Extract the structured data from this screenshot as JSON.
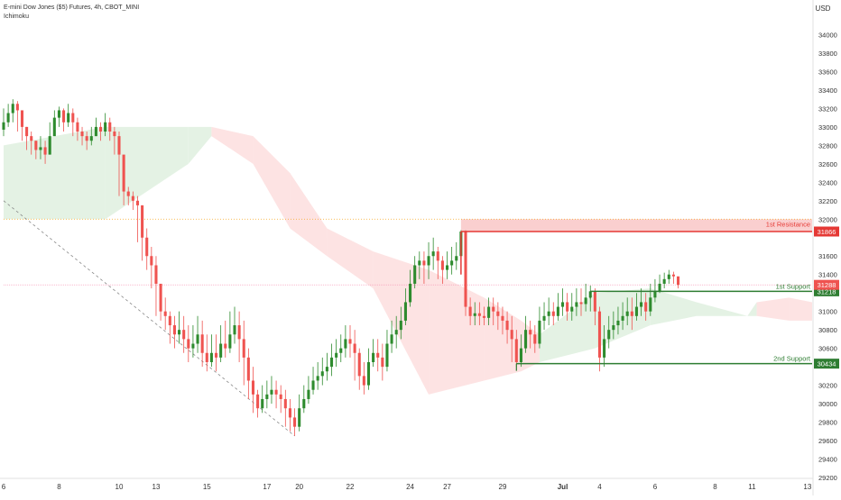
{
  "legend": {
    "symbol_line": "E-mini Dow Jones ($5) Futures, 4h, CBOT_MINI",
    "indicator": "Ichimoku"
  },
  "colors": {
    "up": "#2e8b2e",
    "down": "#ef5350",
    "cloud_bull": "#e4f2e4",
    "cloud_bear": "#fde3e3",
    "resistance": "#e53935",
    "support": "#2e7d32",
    "price": "#ef5350",
    "axis_text": "#333333"
  },
  "chart_data": {
    "type": "candlestick",
    "currency": "USD",
    "ylim": [
      29200,
      34200
    ],
    "y_ticks": [
      34000,
      33800,
      33600,
      33400,
      33200,
      33000,
      32800,
      32600,
      32400,
      32200,
      32000,
      31800,
      31600,
      31400,
      31200,
      31000,
      30800,
      30600,
      30400,
      30200,
      30000,
      29800,
      29600,
      29400,
      29200
    ],
    "x_ticks": [
      {
        "label": "6",
        "i": 0
      },
      {
        "label": "8",
        "i": 12
      },
      {
        "label": "10",
        "i": 25
      },
      {
        "label": "13",
        "i": 33
      },
      {
        "label": "15",
        "i": 44
      },
      {
        "label": "17",
        "i": 57
      },
      {
        "label": "20",
        "i": 64
      },
      {
        "label": "22",
        "i": 75
      },
      {
        "label": "24",
        "i": 88
      },
      {
        "label": "27",
        "i": 96
      },
      {
        "label": "29",
        "i": 108
      },
      {
        "label": "Jul",
        "i": 121
      },
      {
        "label": "4",
        "i": 129
      },
      {
        "label": "6",
        "i": 141
      },
      {
        "label": "8",
        "i": 154
      },
      {
        "label": "11",
        "i": 162
      },
      {
        "label": "13",
        "i": 174
      }
    ],
    "closes": [
      33050,
      33150,
      33250,
      33180,
      33000,
      32900,
      32850,
      32750,
      32780,
      32700,
      32900,
      33100,
      33180,
      33050,
      33150,
      33050,
      32950,
      32900,
      32850,
      32900,
      33000,
      32950,
      33050,
      32950,
      32900,
      32700,
      32300,
      32250,
      32200,
      32150,
      31800,
      31600,
      31500,
      31300,
      31000,
      30950,
      30850,
      30750,
      30800,
      30700,
      30600,
      30650,
      30750,
      30550,
      30450,
      30550,
      30500,
      30650,
      30600,
      30750,
      30850,
      30700,
      30500,
      30250,
      30100,
      29950,
      30050,
      30100,
      30150,
      30100,
      30050,
      29950,
      29850,
      29750,
      29950,
      30050,
      30150,
      30250,
      30300,
      30350,
      30400,
      30500,
      30550,
      30600,
      30700,
      30650,
      30550,
      30300,
      30200,
      30450,
      30550,
      30500,
      30400,
      30650,
      30750,
      30800,
      30900,
      31100,
      31300,
      31500,
      31550,
      31500,
      31600,
      31650,
      31550,
      31450,
      31500,
      31550,
      31600,
      31866,
      31050,
      30950,
      30980,
      30950,
      30930,
      31050,
      31000,
      30950,
      30900,
      30800,
      30700,
      30450,
      30600,
      30800,
      30750,
      30650,
      30900,
      30950,
      31000,
      30950,
      31050,
      31100,
      31000,
      31050,
      31100,
      31080,
      31150,
      31218,
      31000,
      30500,
      30700,
      30800,
      30850,
      30900,
      30950,
      31000,
      30950,
      31050,
      31100,
      31000,
      31150,
      31218,
      31300,
      31350,
      31400,
      31380,
      31288
    ],
    "highs": [
      33200,
      33250,
      33300,
      33280,
      33150,
      33000,
      32950,
      32850,
      32900,
      32850,
      33050,
      33180,
      33220,
      33200,
      33250,
      33200,
      33100,
      33000,
      32950,
      33000,
      33100,
      33050,
      33150,
      33100,
      33000,
      32950,
      32450,
      32350,
      32300,
      32250,
      32150,
      31900,
      31700,
      31600,
      31300,
      31150,
      31000,
      30950,
      31000,
      30950,
      30850,
      30850,
      30950,
      30900,
      30750,
      30750,
      30750,
      30850,
      30900,
      31000,
      31050,
      31000,
      30900,
      30600,
      30400,
      30150,
      30200,
      30250,
      30300,
      30250,
      30200,
      30150,
      30050,
      29950,
      30100,
      30200,
      30300,
      30400,
      30450,
      30500,
      30550,
      30650,
      30700,
      30750,
      30850,
      30850,
      30800,
      30600,
      30450,
      30600,
      30700,
      30700,
      30650,
      30800,
      30900,
      30950,
      31050,
      31250,
      31450,
      31600,
      31650,
      31650,
      31750,
      31800,
      31700,
      31600,
      31650,
      31700,
      31750,
      31880,
      31880,
      31150,
      31100,
      31100,
      31050,
      31150,
      31150,
      31100,
      31050,
      31000,
      30950,
      30800,
      30750,
      30950,
      30900,
      30850,
      31050,
      31100,
      31150,
      31100,
      31200,
      31250,
      31200,
      31200,
      31250,
      31250,
      31300,
      31280,
      31250,
      31050,
      30850,
      30950,
      31000,
      31050,
      31100,
      31150,
      31150,
      31200,
      31250,
      31200,
      31300,
      31350,
      31400,
      31420,
      31450,
      31430,
      31350
    ],
    "lows": [
      32900,
      33000,
      33050,
      32950,
      32850,
      32750,
      32700,
      32650,
      32650,
      32600,
      32700,
      32950,
      33000,
      32950,
      33000,
      32900,
      32850,
      32800,
      32750,
      32800,
      32900,
      32850,
      32900,
      32850,
      32700,
      32250,
      32150,
      32150,
      32100,
      31750,
      31550,
      31450,
      31250,
      30950,
      30900,
      30800,
      30650,
      30600,
      30650,
      30550,
      30450,
      30500,
      30550,
      30400,
      30350,
      30400,
      30350,
      30450,
      30500,
      30550,
      30650,
      30450,
      30200,
      30050,
      29900,
      29850,
      29900,
      29950,
      30000,
      29950,
      29900,
      29750,
      29700,
      29650,
      29700,
      29900,
      30000,
      30100,
      30150,
      30200,
      30250,
      30300,
      30400,
      30450,
      30500,
      30500,
      30250,
      30150,
      30100,
      30150,
      30400,
      30350,
      30250,
      30350,
      30550,
      30600,
      30700,
      30850,
      31050,
      31250,
      31350,
      31300,
      31350,
      31450,
      31350,
      31300,
      31350,
      31400,
      31450,
      31550,
      30950,
      30850,
      30850,
      30850,
      30850,
      30850,
      30850,
      30800,
      30750,
      30650,
      30450,
      30400,
      30400,
      30550,
      30600,
      30550,
      30600,
      30800,
      30850,
      30850,
      30900,
      30950,
      30900,
      30900,
      30950,
      30950,
      31000,
      31000,
      30850,
      30350,
      30400,
      30600,
      30700,
      30750,
      30800,
      30850,
      30800,
      30900,
      30950,
      30900,
      30950,
      31100,
      31200,
      31250,
      31300,
      31300,
      31250
    ],
    "trend_line": {
      "from": {
        "i": 0,
        "price": 32200
      },
      "to": {
        "i": 63,
        "price": 29650
      }
    },
    "levels": [
      {
        "label": "1st Resistance",
        "price": 31866,
        "price_label": "31866",
        "start_i": 99,
        "kind": "resistance",
        "zone_top": 32000
      },
      {
        "label": "1st Support",
        "price": 31218,
        "price_label": "31218",
        "start_i": 127,
        "kind": "support"
      },
      {
        "label": "2nd Support",
        "price": 30434,
        "price_label": "30434",
        "start_i": 111,
        "kind": "support"
      }
    ],
    "current_price": {
      "price": 31288,
      "price_label": "31288"
    },
    "horizontal_dotted_price": 32000,
    "cloud": [
      {
        "i": 0,
        "a": 32800,
        "b": 32000,
        "kind": "bull"
      },
      {
        "i": 22,
        "a": 33000,
        "b": 32000,
        "kind": "bull"
      },
      {
        "i": 40,
        "a": 33000,
        "b": 32600,
        "kind": "bull"
      },
      {
        "i": 45,
        "a": 33000,
        "b": 32900,
        "kind": "bear"
      },
      {
        "i": 54,
        "a": 32900,
        "b": 32600,
        "kind": "bear"
      },
      {
        "i": 62,
        "a": 32500,
        "b": 31900,
        "kind": "bear"
      },
      {
        "i": 70,
        "a": 31900,
        "b": 31600,
        "kind": "bear"
      },
      {
        "i": 80,
        "a": 31650,
        "b": 31250,
        "kind": "bear"
      },
      {
        "i": 92,
        "a": 31450,
        "b": 30100,
        "kind": "bear"
      },
      {
        "i": 104,
        "a": 31150,
        "b": 30250,
        "kind": "bear"
      },
      {
        "i": 112,
        "a": 30900,
        "b": 30350,
        "kind": "bear"
      },
      {
        "i": 116,
        "a": 30750,
        "b": 30450,
        "kind": "bull"
      },
      {
        "i": 128,
        "a": 31200,
        "b": 30600,
        "kind": "bull"
      },
      {
        "i": 140,
        "a": 31250,
        "b": 30850,
        "kind": "bull"
      },
      {
        "i": 150,
        "a": 31100,
        "b": 30950,
        "kind": "bull"
      },
      {
        "i": 161,
        "a": 30950,
        "b": 30950,
        "kind": "bull"
      },
      {
        "i": 163,
        "a": 31100,
        "b": 30950,
        "kind": "bear"
      },
      {
        "i": 170,
        "a": 31150,
        "b": 30900,
        "kind": "bear"
      },
      {
        "i": 175,
        "a": 31100,
        "b": 30900,
        "kind": "bear"
      }
    ]
  }
}
